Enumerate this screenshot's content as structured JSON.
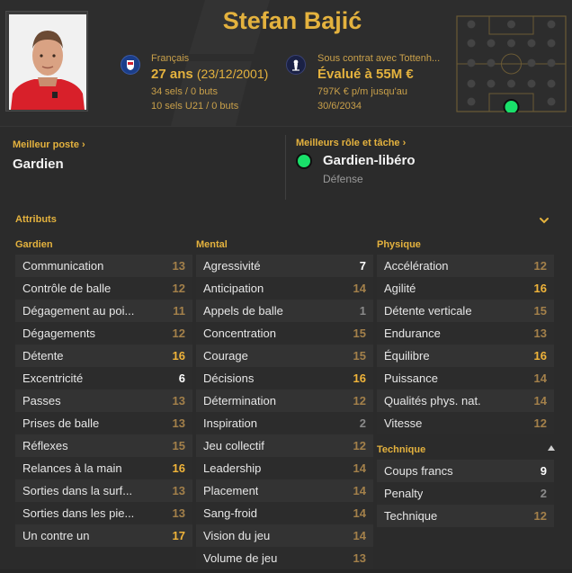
{
  "player": {
    "name": "Stefan Bajić",
    "nationality": "Français",
    "age": "27 ans",
    "birthdate": "(23/12/2001)",
    "caps": "34 sels / 0 buts",
    "u21_caps": "10 sels U21 / 0 buts",
    "contract": "Sous contrat avec Tottenh...",
    "value": "Évalué à 55M €",
    "wage": "797K € p/m jusqu'au",
    "contract_end": "30/6/2034"
  },
  "best_position": {
    "label": "Meilleur poste",
    "value": "Gardien"
  },
  "best_role": {
    "label": "Meilleurs rôle et tâche",
    "value": "Gardien-libéro",
    "duty": "Défense",
    "dot_color": "#19e06a"
  },
  "attributes": {
    "title": "Attributs",
    "columns": [
      {
        "title": "Gardien",
        "items": [
          {
            "name": "Communication",
            "value": "13",
            "tone": "mid"
          },
          {
            "name": "Contrôle de balle",
            "value": "12",
            "tone": "mid"
          },
          {
            "name": "Dégagement au poi...",
            "value": "11",
            "tone": "mid"
          },
          {
            "name": "Dégagements",
            "value": "12",
            "tone": "mid"
          },
          {
            "name": "Détente",
            "value": "16",
            "tone": "hi"
          },
          {
            "name": "Excentricité",
            "value": "6",
            "tone": "white"
          },
          {
            "name": "Passes",
            "value": "13",
            "tone": "mid"
          },
          {
            "name": "Prises de balle",
            "value": "13",
            "tone": "mid"
          },
          {
            "name": "Réflexes",
            "value": "15",
            "tone": "mid"
          },
          {
            "name": "Relances à la main",
            "value": "16",
            "tone": "hi"
          },
          {
            "name": "Sorties dans la surf...",
            "value": "13",
            "tone": "mid"
          },
          {
            "name": "Sorties dans les pie...",
            "value": "13",
            "tone": "mid"
          },
          {
            "name": "Un contre un",
            "value": "17",
            "tone": "hi"
          }
        ]
      },
      {
        "title": "Mental",
        "items": [
          {
            "name": "Agressivité",
            "value": "7",
            "tone": "white"
          },
          {
            "name": "Anticipation",
            "value": "14",
            "tone": "mid"
          },
          {
            "name": "Appels de balle",
            "value": "1",
            "tone": "low"
          },
          {
            "name": "Concentration",
            "value": "15",
            "tone": "mid"
          },
          {
            "name": "Courage",
            "value": "15",
            "tone": "mid"
          },
          {
            "name": "Décisions",
            "value": "16",
            "tone": "hi"
          },
          {
            "name": "Détermination",
            "value": "12",
            "tone": "mid"
          },
          {
            "name": "Inspiration",
            "value": "2",
            "tone": "low"
          },
          {
            "name": "Jeu collectif",
            "value": "12",
            "tone": "mid"
          },
          {
            "name": "Leadership",
            "value": "14",
            "tone": "mid"
          },
          {
            "name": "Placement",
            "value": "14",
            "tone": "mid"
          },
          {
            "name": "Sang-froid",
            "value": "14",
            "tone": "mid"
          },
          {
            "name": "Vision du jeu",
            "value": "14",
            "tone": "mid"
          },
          {
            "name": "Volume de jeu",
            "value": "13",
            "tone": "mid"
          }
        ]
      },
      {
        "title": "Physique",
        "items": [
          {
            "name": "Accélération",
            "value": "12",
            "tone": "mid"
          },
          {
            "name": "Agilité",
            "value": "16",
            "tone": "hi"
          },
          {
            "name": "Détente verticale",
            "value": "15",
            "tone": "mid"
          },
          {
            "name": "Endurance",
            "value": "13",
            "tone": "mid"
          },
          {
            "name": "Équilibre",
            "value": "16",
            "tone": "hi"
          },
          {
            "name": "Puissance",
            "value": "14",
            "tone": "mid"
          },
          {
            "name": "Qualités phys. nat.",
            "value": "14",
            "tone": "mid"
          },
          {
            "name": "Vitesse",
            "value": "12",
            "tone": "mid"
          }
        ]
      },
      {
        "title": "Technique",
        "items": [
          {
            "name": "Coups francs",
            "value": "9",
            "tone": "white"
          },
          {
            "name": "Penalty",
            "value": "2",
            "tone": "low"
          },
          {
            "name": "Technique",
            "value": "12",
            "tone": "mid"
          }
        ]
      }
    ]
  },
  "colors": {
    "accent": "#e4b23e",
    "background": "#2b2b2b",
    "high": "#f0b43a",
    "position_marker": "#19e06a"
  },
  "icons": {
    "nation": "france-flag-icon",
    "club": "tottenham-badge-icon",
    "expand": "chevron-down-icon",
    "collapse_section": "triangle-up-icon"
  }
}
